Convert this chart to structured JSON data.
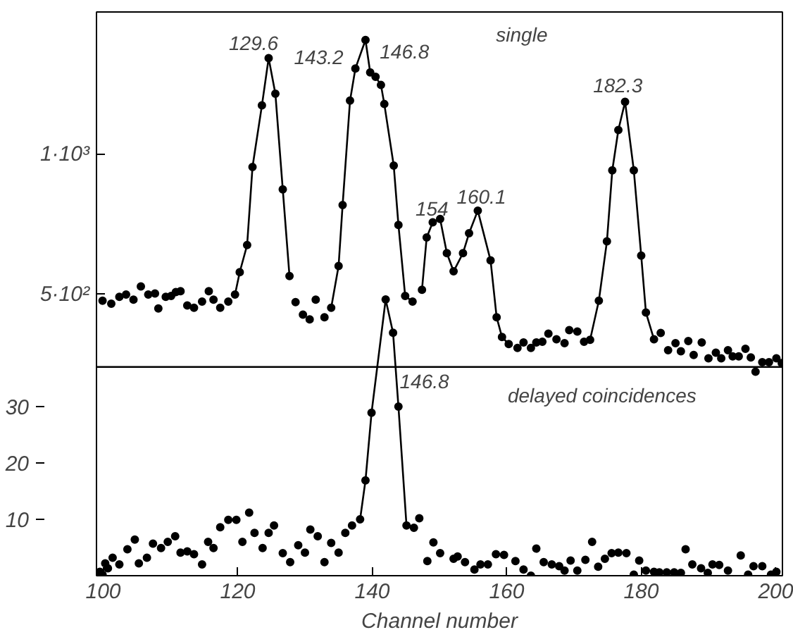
{
  "chart_data": {
    "type": "scatter",
    "xlabel": "Channel number",
    "xlim": [
      99,
      201
    ],
    "xticks": [
      100,
      120,
      140,
      160,
      180,
      200
    ],
    "ylim": [
      -505,
      1510
    ],
    "yticks": [
      {
        "value": 500,
        "label": "5·10²"
      },
      {
        "value": 1000,
        "label": "1·10³"
      }
    ],
    "y2lim": [
      0,
      100
    ],
    "y2ticks": [
      10,
      20,
      30
    ],
    "grid": false,
    "marker": "circle",
    "line_style": "solid",
    "series": [
      {
        "type": "line",
        "color": "#000000",
        "x": [
          119.6,
          120.3,
          121.4,
          122.2,
          123.6,
          124.6,
          125.6,
          126.7,
          127.7,
          130.8,
          133.9,
          135.0,
          135.6,
          136.7,
          137.5,
          139.0,
          139.7,
          140.5,
          141.3,
          141.8,
          143.2,
          143.9,
          144.9,
          146.0,
          146.7,
          147.4,
          148.1,
          149.0,
          150.1,
          151.1,
          152.1,
          153.5,
          154.4,
          155.7,
          157.6,
          158.5,
          159.3,
          160.3,
          166.0,
          172.4,
          173.7,
          174.9,
          175.7,
          176.6,
          177.6,
          178.9,
          180.0,
          180.7,
          181.9
        ],
        "values": [
          500,
          580,
          677,
          956,
          1176,
          1345,
          1218,
          876,
          566,
          null,
          453,
          602,
          820,
          1193,
          1308,
          1410,
          1294,
          1278,
          1249,
          1181,
          961,
          749,
          495,
          475,
          null,
          517,
          704,
          758,
          770,
          648,
          583,
          648,
          719,
          800,
          622,
          419,
          348,
          323,
          null,
          338,
          478,
          690,
          944,
          1088,
          1189,
          944,
          639,
          436,
          340
        ]
      },
      {
        "type": "scatter",
        "color": "#000000",
        "x": [
          99.9,
          101.2,
          102.4,
          103.4,
          104.5,
          105.6,
          106.7,
          107.7,
          108.2,
          109.3,
          110.1,
          110.8,
          111.5,
          112.5,
          113.5,
          114.7,
          115.7,
          116.4,
          117.4,
          118.6,
          128.6,
          129.7,
          130.7,
          131.6,
          132.9,
          161.6,
          162.5,
          163.6,
          164.4,
          165.3,
          166.2,
          167.4,
          168.6,
          169.3,
          170.5,
          171.5,
          182.9,
          184.0,
          185.1,
          185.9,
          187.0,
          187.8,
          189.0,
          190.0,
          191.1,
          191.9,
          192.9,
          193.6,
          194.5,
          195.5,
          196.3,
          197.0,
          198.0,
          199.0,
          200.1,
          200.9
        ],
        "values": [
          478,
          467,
          492,
          500,
          482,
          529,
          500,
          504,
          450,
          492,
          495,
          509,
          512,
          461,
          453,
          475,
          512,
          482,
          453,
          475,
          473,
          428,
          411,
          482,
          419,
          309,
          329,
          309,
          329,
          331,
          360,
          340,
          326,
          373,
          368,
          331,
          363,
          301,
          326,
          297,
          334,
          284,
          329,
          272,
          292,
          272,
          301,
          279,
          279,
          306,
          275,
          224,
          258,
          258,
          272,
          255
        ]
      },
      {
        "type": "line",
        "axis": "y2",
        "color": "#000000",
        "x": [
          138.2,
          139.0,
          139.9,
          142.0,
          143.1,
          143.9,
          145.1
        ],
        "values": [
          10.0,
          16.9,
          28.9,
          49.0,
          43.1,
          30.0,
          8.9
        ]
      },
      {
        "type": "scatter",
        "axis": "y2",
        "color": "#000000",
        "x": [
          99.5,
          99.9,
          100.3,
          100.7,
          101.4,
          102.4,
          103.6,
          104.7,
          105.3,
          106.5,
          107.4,
          108.6,
          109.6,
          110.7,
          111.5,
          112.5,
          113.5,
          114.7,
          115.6,
          116.4,
          117.4,
          118.6,
          119.8,
          120.7,
          121.7,
          122.5,
          123.7,
          124.6,
          125.4,
          126.7,
          127.8,
          129.0,
          130.0,
          130.8,
          131.9,
          132.9,
          133.9,
          135.0,
          136.0,
          137.0,
          146.2,
          147.0,
          148.2,
          149.1,
          150.1,
          152.1,
          152.7,
          153.8,
          155.2,
          156.1,
          157.2,
          158.4,
          159.6,
          161.3,
          162.5,
          163.6,
          164.4,
          165.5,
          166.7,
          167.8,
          168.6,
          169.5,
          170.5,
          171.7,
          172.7,
          173.6,
          174.6,
          175.6,
          176.6,
          177.8,
          178.9,
          179.7,
          180.7,
          181.9,
          182.7,
          183.8,
          184.9,
          185.9,
          186.6,
          187.6,
          188.9,
          189.9,
          190.6,
          191.6,
          192.9,
          194.8,
          195.9,
          196.7,
          198.0,
          199.3,
          200.1
        ],
        "values": [
          0.7,
          0.2,
          2.2,
          1.3,
          3.2,
          2.0,
          4.7,
          6.4,
          2.2,
          3.2,
          5.7,
          4.9,
          6.0,
          7.0,
          4.1,
          4.3,
          3.8,
          2.0,
          6.0,
          4.9,
          8.6,
          9.9,
          9.9,
          6.0,
          11.2,
          7.6,
          4.9,
          7.6,
          8.9,
          4.0,
          2.4,
          5.4,
          4.1,
          8.2,
          7.0,
          2.4,
          5.8,
          4.1,
          7.6,
          8.9,
          8.5,
          10.2,
          2.6,
          5.9,
          4.0,
          3.0,
          3.4,
          2.4,
          1.1,
          2.0,
          2.0,
          3.8,
          3.7,
          2.6,
          1.1,
          0.0,
          4.8,
          2.4,
          2.0,
          1.7,
          0.9,
          2.7,
          0.9,
          2.8,
          6.0,
          1.6,
          3.0,
          4.0,
          4.1,
          4.0,
          0.2,
          2.7,
          0.9,
          0.7,
          0.6,
          0.6,
          0.6,
          0.5,
          4.7,
          2.0,
          1.3,
          0.5,
          2.0,
          1.9,
          0.9,
          3.6,
          0.2,
          1.7,
          1.7,
          0.2,
          0.7
        ]
      }
    ],
    "ref_lines": [
      {
        "axis": "y",
        "value": 241,
        "color": "#000000"
      }
    ],
    "annotations": [
      "129.6",
      "143.2",
      "146.8",
      "154",
      "160.1",
      "182.3",
      "146.8",
      "single",
      "delayed coincidences"
    ]
  }
}
